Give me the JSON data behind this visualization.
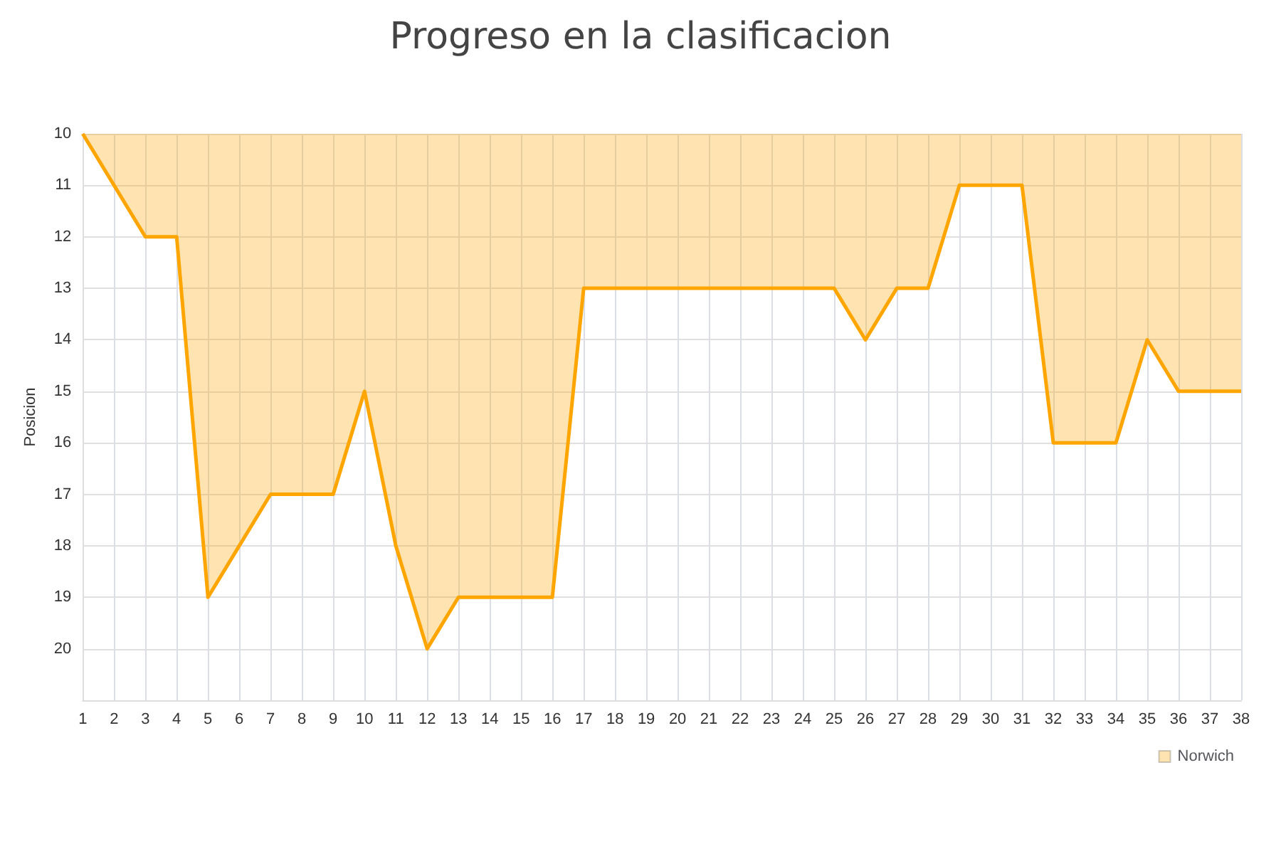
{
  "chart_data": {
    "type": "area",
    "title": "Progreso en la clasificacion",
    "ylabel": "Posicion",
    "x": [
      1,
      2,
      3,
      4,
      5,
      6,
      7,
      8,
      9,
      10,
      11,
      12,
      13,
      14,
      15,
      16,
      17,
      18,
      19,
      20,
      21,
      22,
      23,
      24,
      25,
      26,
      27,
      28,
      29,
      30,
      31,
      32,
      33,
      34,
      35,
      36,
      37,
      38
    ],
    "series": [
      {
        "name": "Norwich",
        "color": "#ffa500",
        "values": [
          10,
          11,
          12,
          12,
          19,
          18,
          17,
          17,
          17,
          15,
          18,
          20,
          19,
          19,
          19,
          19,
          13,
          13,
          13,
          13,
          13,
          13,
          13,
          13,
          13,
          14,
          13,
          13,
          11,
          11,
          11,
          16,
          16,
          16,
          14,
          15,
          15,
          15
        ]
      }
    ],
    "xlim": [
      1,
      38
    ],
    "xticks": [
      1,
      2,
      3,
      4,
      5,
      6,
      7,
      8,
      9,
      10,
      11,
      12,
      13,
      14,
      15,
      16,
      17,
      18,
      19,
      20,
      21,
      22,
      23,
      24,
      25,
      26,
      27,
      28,
      29,
      30,
      31,
      32,
      33,
      34,
      35,
      36,
      37,
      38
    ],
    "ylim": [
      21,
      10
    ],
    "yticks": [
      10,
      11,
      12,
      13,
      14,
      15,
      16,
      17,
      18,
      19,
      20
    ],
    "grid": true,
    "legend": "bottom right",
    "marker": "none",
    "line_style": "solid"
  }
}
